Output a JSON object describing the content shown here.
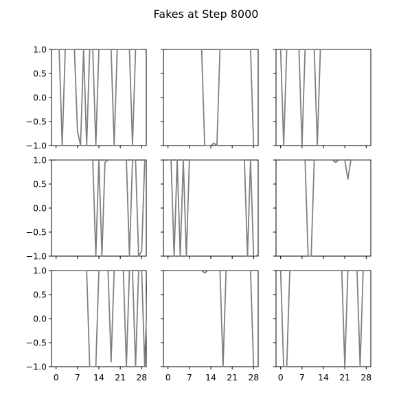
{
  "figure": {
    "title": "Fakes at Step 8000"
  },
  "chart_data": {
    "type": "line",
    "title": "Fakes at Step 8000",
    "layout": "3x3 grid, shared x and y axes",
    "xlim": [
      -1.5,
      29.5
    ],
    "ylim": [
      -1.0,
      1.0
    ],
    "xticks": [
      0,
      7,
      14,
      21,
      28
    ],
    "xtick_labels": [
      "0",
      "7",
      "14",
      "21",
      "28"
    ],
    "yticks": [
      -1.0,
      -0.5,
      0.0,
      0.5,
      1.0
    ],
    "ytick_labels": [
      "−1.0",
      "−0.5",
      "0.0",
      "0.5",
      "1.0"
    ],
    "grid": false,
    "legend": "none",
    "line_color": "#808080",
    "panels": [
      {
        "values": [
          1,
          1,
          -1,
          1,
          1,
          1,
          1,
          -0.7,
          -1,
          1,
          -1,
          1,
          1,
          -1,
          1,
          1,
          1,
          1,
          1,
          -1,
          1,
          1,
          1,
          1,
          1,
          -1,
          1,
          1,
          1
        ]
      },
      {
        "values": [
          1,
          1,
          1,
          1,
          1,
          1,
          1,
          1,
          1,
          1,
          1,
          1,
          -1,
          -1,
          -1,
          -0.95,
          -1,
          1,
          1,
          1,
          1,
          1,
          1,
          1,
          1,
          1,
          1,
          1,
          -1
        ]
      },
      {
        "values": [
          1,
          -1,
          1,
          1,
          1,
          1,
          1,
          -1,
          1,
          1,
          1,
          1,
          -1,
          1,
          1,
          1,
          1,
          1,
          1,
          1,
          1,
          1,
          1,
          1,
          1,
          1,
          1,
          1,
          1
        ]
      },
      {
        "values": [
          1,
          1,
          1,
          1,
          1,
          1,
          1,
          1,
          1,
          1,
          1,
          1,
          1,
          -1,
          1,
          -1,
          0.95,
          1,
          1,
          1,
          1,
          1,
          1,
          1,
          -1,
          1,
          1,
          -1,
          -0.9,
          1
        ]
      },
      {
        "values": [
          1,
          1,
          -1,
          1,
          -1,
          1,
          -1,
          1,
          1,
          1,
          1,
          1,
          1,
          1,
          1,
          1,
          1,
          1,
          1,
          1,
          1,
          1,
          1,
          1,
          1,
          1,
          -1,
          1,
          -1,
          -1,
          -0.9
        ]
      },
      {
        "values": [
          1,
          1,
          1,
          1,
          1,
          1,
          1,
          1,
          1,
          -1,
          -1,
          1,
          1,
          1,
          1,
          1,
          1,
          1,
          0.95,
          1,
          1,
          1,
          0.6,
          1,
          1,
          1,
          1,
          1,
          1,
          1
        ]
      },
      {
        "values": [
          1,
          1,
          1,
          1,
          1,
          1,
          1,
          1,
          1,
          1,
          1,
          -1,
          -1,
          -1,
          1,
          1,
          1,
          1,
          -0.9,
          1,
          1,
          1,
          1,
          -1,
          1,
          1,
          -1,
          1,
          1,
          -1,
          1
        ]
      },
      {
        "values": [
          1,
          1,
          1,
          1,
          1,
          1,
          1,
          1,
          1,
          1,
          1,
          1,
          0.95,
          1,
          1,
          1,
          1,
          1,
          -1,
          1,
          1,
          1,
          1,
          1,
          1,
          1,
          1,
          1,
          -1
        ]
      },
      {
        "values": [
          1,
          -1,
          -1,
          1,
          1,
          1,
          1,
          1,
          1,
          1,
          1,
          1,
          1,
          1,
          1,
          1,
          1,
          1,
          1,
          1,
          1,
          -1,
          1,
          1,
          1,
          1,
          -1,
          1,
          1
        ]
      }
    ]
  }
}
